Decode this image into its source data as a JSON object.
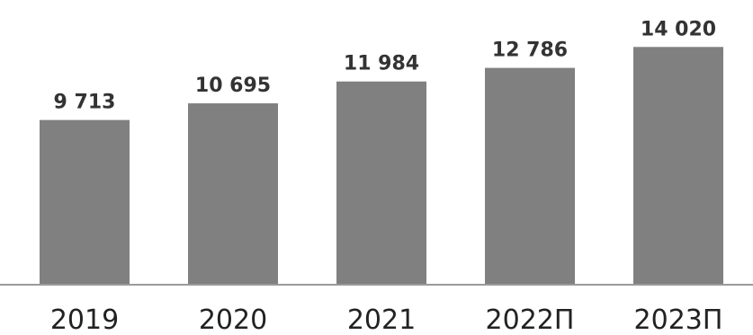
{
  "chart_data": {
    "type": "bar",
    "categories": [
      "2019",
      "2020",
      "2021",
      "2022П",
      "2023П"
    ],
    "values": [
      9713,
      10695,
      11984,
      12786,
      14020
    ],
    "value_labels": [
      "9 713",
      "10 695",
      "11 984",
      "12 786",
      "14 020"
    ],
    "ylim": [
      0,
      15200
    ],
    "grid": false,
    "legend": "none",
    "colors": {
      "bar": "#808080",
      "baseline": "#9a9a9a",
      "text": "#222222"
    }
  }
}
